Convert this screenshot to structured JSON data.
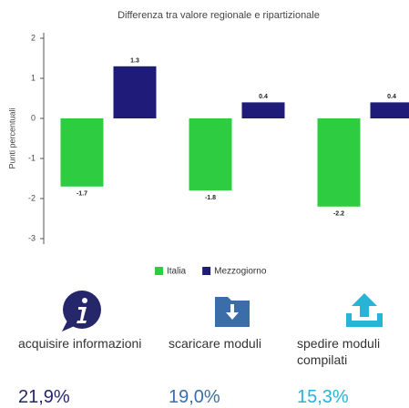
{
  "chart_data": {
    "type": "bar",
    "title": "Differenza tra valore regionale e ripartizionale",
    "y_label": "Punti percentuali",
    "categories": [
      null,
      null,
      null
    ],
    "series": [
      {
        "name": "Italia",
        "color": "#2ecc40",
        "values": [
          -1.7,
          -1.8,
          -2.2
        ]
      },
      {
        "name": "Mezzogiorno",
        "color": "#1f1b78",
        "values": [
          1.3,
          0.4,
          0.4
        ]
      }
    ],
    "ylim": [
      -3.2,
      2.2
    ],
    "yticks": [
      -3,
      -2,
      -1,
      0,
      1,
      2
    ],
    "grid": false
  },
  "indicators": [
    {
      "label": "acquisire informazioni",
      "value": "21,9%",
      "color": "#26266b"
    },
    {
      "label": "scaricare moduli",
      "value": "19,0%",
      "color": "#3b6ea8"
    },
    {
      "label": "spedire moduli compilati",
      "value": "15,3%",
      "color": "#27b4d6"
    }
  ]
}
